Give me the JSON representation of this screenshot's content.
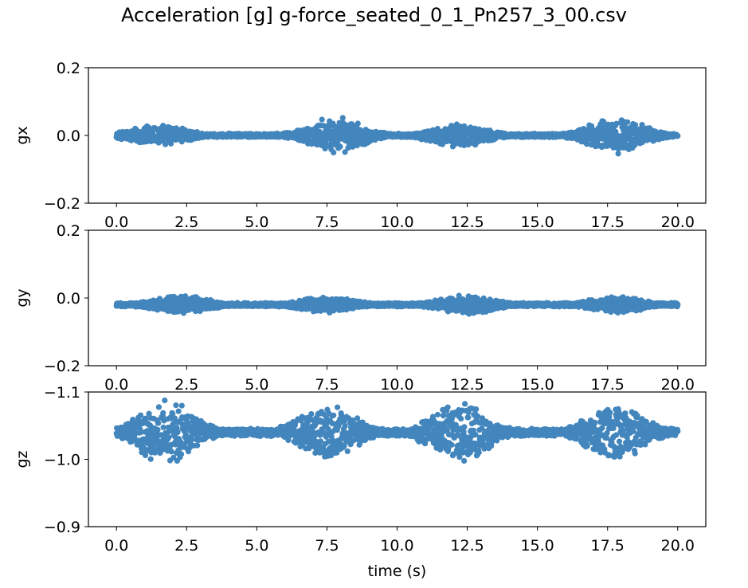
{
  "title": "Acceleration [g] g-force_seated_0_1_Pn257_3_00.csv",
  "colors": {
    "series": "#4386BD",
    "axes": "#000000"
  },
  "chart_data": [
    {
      "type": "scatter",
      "ylabel": "gx",
      "xlabel": "",
      "xlim": [
        -1.0,
        21.0
      ],
      "ylim": [
        -0.2,
        0.2
      ],
      "yinverted": false,
      "xticks": [
        "0.0",
        "2.5",
        "5.0",
        "7.5",
        "10.0",
        "12.5",
        "15.0",
        "17.5",
        "20.0"
      ],
      "yticks": [
        "0.2",
        "0.0",
        "−0.2"
      ],
      "ytick_values": [
        0.2,
        0.0,
        -0.2
      ],
      "center": 0.0,
      "bursts": [
        {
          "center": 1.5,
          "peak": 0.035
        },
        {
          "center": 7.8,
          "peak": 0.055
        },
        {
          "center": 12.2,
          "peak": 0.035
        },
        {
          "center": 17.8,
          "peak": 0.055
        }
      ],
      "point_count": 2000
    },
    {
      "type": "scatter",
      "ylabel": "gy",
      "xlabel": "",
      "xlim": [
        -1.0,
        21.0
      ],
      "ylim": [
        -0.2,
        0.2
      ],
      "yinverted": false,
      "xticks": [
        "0.0",
        "2.5",
        "5.0",
        "7.5",
        "10.0",
        "12.5",
        "15.0",
        "17.5",
        "20.0"
      ],
      "yticks": [
        "0.2",
        "0.0",
        "−0.2"
      ],
      "ytick_values": [
        0.2,
        0.0,
        -0.2
      ],
      "center": -0.02,
      "bursts": [
        {
          "center": 2.3,
          "peak": 0.03
        },
        {
          "center": 7.5,
          "peak": 0.025
        },
        {
          "center": 12.5,
          "peak": 0.03
        },
        {
          "center": 17.8,
          "peak": 0.025
        }
      ],
      "point_count": 2000
    },
    {
      "type": "scatter",
      "ylabel": "gz",
      "xlabel": "time (s)",
      "xlim": [
        -1.0,
        21.0
      ],
      "ylim": [
        -1.1,
        -0.9
      ],
      "yinverted": true,
      "xticks": [
        "0.0",
        "2.5",
        "5.0",
        "7.5",
        "10.0",
        "12.5",
        "15.0",
        "17.5",
        "20.0"
      ],
      "yticks": [
        "−1.1",
        "−1.0",
        "−0.9"
      ],
      "ytick_values": [
        -1.1,
        -1.0,
        -0.9
      ],
      "center": -1.04,
      "bursts": [
        {
          "center": 1.8,
          "peak": 0.05
        },
        {
          "center": 7.5,
          "peak": 0.045
        },
        {
          "center": 12.2,
          "peak": 0.05
        },
        {
          "center": 17.8,
          "peak": 0.045
        }
      ],
      "point_count": 2000
    }
  ]
}
